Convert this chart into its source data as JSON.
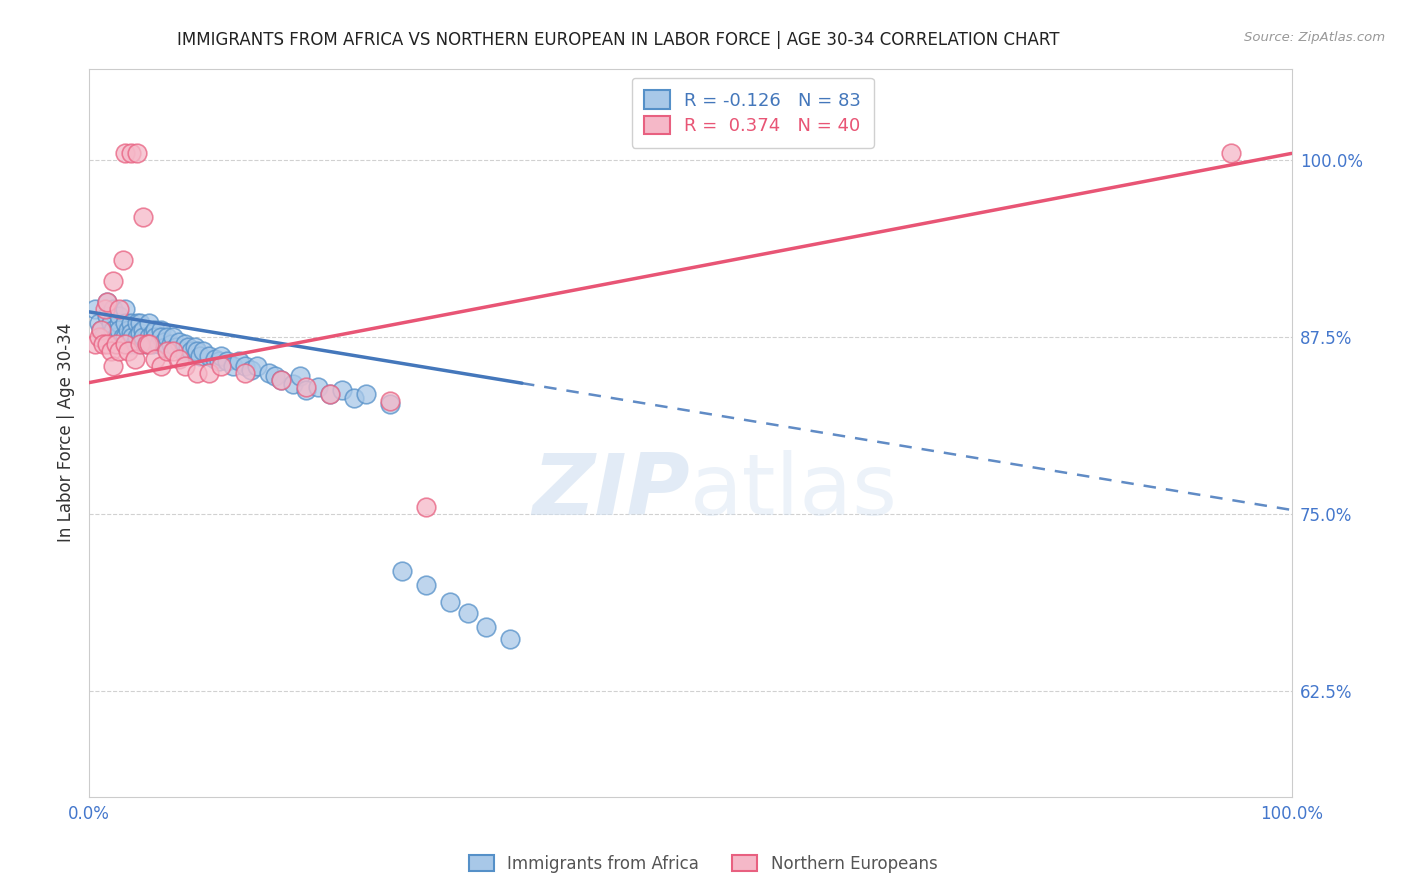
{
  "title": "IMMIGRANTS FROM AFRICA VS NORTHERN EUROPEAN IN LABOR FORCE | AGE 30-34 CORRELATION CHART",
  "source": "Source: ZipAtlas.com",
  "ylabel": "In Labor Force | Age 30-34",
  "xlim": [
    0.0,
    1.0
  ],
  "ylim": [
    0.55,
    1.065
  ],
  "yticks": [
    0.625,
    0.75,
    0.875,
    1.0
  ],
  "ytick_labels": [
    "62.5%",
    "75.0%",
    "87.5%",
    "100.0%"
  ],
  "xticks": [
    0.0,
    0.1,
    0.2,
    0.3,
    0.4,
    0.5,
    0.6,
    0.7,
    0.8,
    0.9,
    1.0
  ],
  "legend_r_blue": "-0.126",
  "legend_n_blue": "83",
  "legend_r_pink": "0.374",
  "legend_n_pink": "40",
  "blue_color": "#a8c8e8",
  "pink_color": "#f5b8c8",
  "blue_edge_color": "#5590c8",
  "pink_edge_color": "#e86080",
  "blue_line_color": "#4477bb",
  "pink_line_color": "#e85575",
  "watermark_color": "#d0dff0",
  "blue_scatter_x": [
    0.005,
    0.008,
    0.01,
    0.012,
    0.015,
    0.015,
    0.018,
    0.02,
    0.02,
    0.022,
    0.025,
    0.025,
    0.025,
    0.028,
    0.03,
    0.03,
    0.03,
    0.032,
    0.033,
    0.035,
    0.035,
    0.036,
    0.038,
    0.04,
    0.04,
    0.042,
    0.042,
    0.043,
    0.045,
    0.045,
    0.048,
    0.05,
    0.05,
    0.052,
    0.053,
    0.055,
    0.055,
    0.058,
    0.06,
    0.06,
    0.062,
    0.063,
    0.065,
    0.068,
    0.07,
    0.072,
    0.075,
    0.078,
    0.08,
    0.082,
    0.085,
    0.088,
    0.09,
    0.092,
    0.095,
    0.1,
    0.105,
    0.108,
    0.11,
    0.115,
    0.12,
    0.125,
    0.13,
    0.135,
    0.14,
    0.15,
    0.155,
    0.16,
    0.17,
    0.175,
    0.18,
    0.19,
    0.2,
    0.21,
    0.22,
    0.23,
    0.25,
    0.26,
    0.28,
    0.3,
    0.315,
    0.33,
    0.35
  ],
  "blue_scatter_y": [
    0.895,
    0.885,
    0.88,
    0.875,
    0.89,
    0.9,
    0.885,
    0.88,
    0.895,
    0.875,
    0.885,
    0.89,
    0.88,
    0.875,
    0.895,
    0.885,
    0.875,
    0.88,
    0.87,
    0.885,
    0.878,
    0.875,
    0.87,
    0.885,
    0.875,
    0.885,
    0.878,
    0.87,
    0.88,
    0.875,
    0.87,
    0.885,
    0.875,
    0.87,
    0.878,
    0.88,
    0.875,
    0.87,
    0.88,
    0.875,
    0.872,
    0.868,
    0.875,
    0.87,
    0.875,
    0.868,
    0.872,
    0.865,
    0.87,
    0.868,
    0.865,
    0.868,
    0.865,
    0.862,
    0.865,
    0.862,
    0.86,
    0.858,
    0.862,
    0.858,
    0.855,
    0.858,
    0.855,
    0.852,
    0.855,
    0.85,
    0.848,
    0.845,
    0.842,
    0.848,
    0.838,
    0.84,
    0.835,
    0.838,
    0.832,
    0.835,
    0.828,
    0.71,
    0.7,
    0.688,
    0.68,
    0.67,
    0.662
  ],
  "pink_scatter_x": [
    0.005,
    0.008,
    0.01,
    0.012,
    0.013,
    0.015,
    0.015,
    0.018,
    0.02,
    0.02,
    0.022,
    0.025,
    0.025,
    0.028,
    0.03,
    0.03,
    0.032,
    0.035,
    0.038,
    0.04,
    0.042,
    0.045,
    0.048,
    0.05,
    0.055,
    0.06,
    0.065,
    0.07,
    0.075,
    0.08,
    0.09,
    0.1,
    0.11,
    0.13,
    0.16,
    0.18,
    0.2,
    0.25,
    0.28,
    0.95
  ],
  "pink_scatter_y": [
    0.87,
    0.875,
    0.88,
    0.87,
    0.895,
    0.87,
    0.9,
    0.865,
    0.855,
    0.915,
    0.87,
    0.865,
    0.895,
    0.93,
    0.87,
    1.005,
    0.865,
    1.005,
    0.86,
    1.005,
    0.87,
    0.96,
    0.87,
    0.87,
    0.86,
    0.855,
    0.865,
    0.865,
    0.86,
    0.855,
    0.85,
    0.85,
    0.855,
    0.85,
    0.845,
    0.84,
    0.835,
    0.83,
    0.755,
    1.005
  ],
  "blue_line_start_x": 0.0,
  "blue_line_end_solid_x": 0.36,
  "blue_line_end_dash_x": 1.0,
  "blue_line_start_y": 0.893,
  "blue_line_end_y": 0.753,
  "pink_line_start_x": 0.0,
  "pink_line_end_x": 1.0,
  "pink_line_start_y": 0.843,
  "pink_line_end_y": 1.005
}
